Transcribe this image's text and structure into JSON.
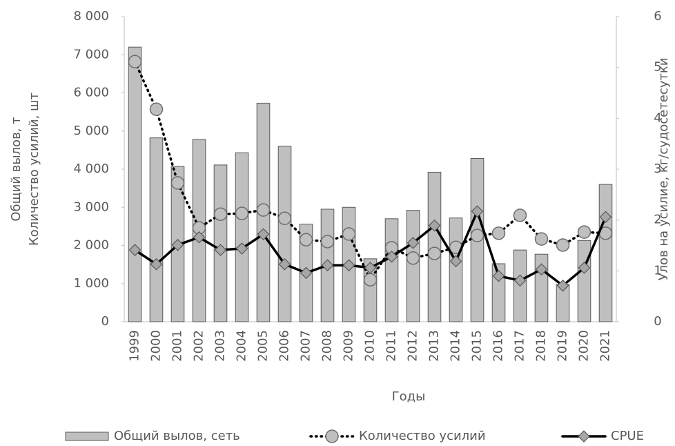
{
  "chart_data": {
    "type": "bar",
    "categories": [
      "1999",
      "2000",
      "2001",
      "2002",
      "2003",
      "2004",
      "2005",
      "2006",
      "2007",
      "2008",
      "2009",
      "2010",
      "2011",
      "2012",
      "2013",
      "2014",
      "2015",
      "2016",
      "2017",
      "2018",
      "2019",
      "2020",
      "2021"
    ],
    "series": [
      {
        "name": "Общий вылов, сеть",
        "type": "bar",
        "color": "#bfbfbf",
        "values": [
          7200,
          4820,
          4070,
          4780,
          4110,
          4430,
          5730,
          4600,
          2560,
          2950,
          3000,
          1650,
          2700,
          2920,
          3920,
          2720,
          4280,
          1520,
          1880,
          1770,
          980,
          2130,
          3600
        ]
      },
      {
        "name": "Количество усилий",
        "type": "line",
        "line_style": "dotted",
        "marker": "circle",
        "color": "#bfbfbf",
        "values": [
          6820,
          5570,
          3640,
          2460,
          2820,
          2840,
          2930,
          2710,
          2150,
          2100,
          2300,
          1100,
          1940,
          1670,
          1790,
          1950,
          2260,
          2320,
          2790,
          2170,
          2010,
          2350,
          2320
        ]
      },
      {
        "name": "CPUE",
        "type": "line",
        "line_style": "solid",
        "marker": "diamond",
        "color": "#a6a6a6",
        "axis": "y2",
        "values": [
          1.41,
          1.13,
          1.51,
          1.66,
          1.41,
          1.44,
          1.72,
          1.13,
          0.96,
          1.11,
          1.11,
          1.06,
          1.28,
          1.55,
          1.89,
          1.19,
          2.17,
          0.9,
          0.81,
          1.03,
          0.71,
          1.06,
          2.06
        ]
      }
    ],
    "xlabel": "Годы",
    "ylabel": [
      "Общий вылов, т",
      "Количество усилий, шт"
    ],
    "y2label": "Улов на усилие, кг/судосетесутки",
    "ylim": [
      0,
      8000
    ],
    "yticks": [
      0,
      {
        "value": 1000,
        "label": "1 000"
      },
      {
        "value": 2000,
        "label": "2 000"
      },
      {
        "value": 3000,
        "label": "3 000"
      },
      {
        "value": 4000,
        "label": "4 000"
      },
      {
        "value": 5000,
        "label": "5 000"
      },
      {
        "value": 6000,
        "label": "6 000"
      },
      {
        "value": 7000,
        "label": "7 000"
      },
      {
        "value": 8000,
        "label": "8 000"
      }
    ],
    "y2lim": [
      0,
      6
    ],
    "y2ticks": [
      0,
      1,
      2,
      3,
      4,
      5,
      6
    ],
    "grid": false,
    "legend": "bottom"
  }
}
